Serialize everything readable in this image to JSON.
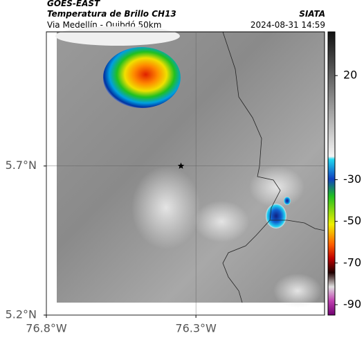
{
  "header": {
    "title": "GOES-EAST",
    "subtitle": "Temperatura de Brillo CH13",
    "region": "Via Medellín - Quibdó 50km",
    "source": "SIATA",
    "timestamp": "2024-08-31 14:59"
  },
  "map": {
    "xlim": [
      -76.8,
      -75.87
    ],
    "ylim": [
      5.2,
      6.15
    ],
    "xticks": [
      {
        "value": -76.8,
        "label": "76.8°W"
      },
      {
        "value": -76.3,
        "label": "76.3°W"
      }
    ],
    "yticks": [
      {
        "value": 5.2,
        "label": "5.2°N"
      },
      {
        "value": 5.7,
        "label": "5.7°N"
      }
    ],
    "grid": true,
    "marker": {
      "lon": -76.35,
      "lat": 5.7
    }
  },
  "colorbar": {
    "lim": [
      -95,
      41
    ],
    "ticks": [
      20,
      -30,
      -50,
      -70,
      -90
    ]
  }
}
